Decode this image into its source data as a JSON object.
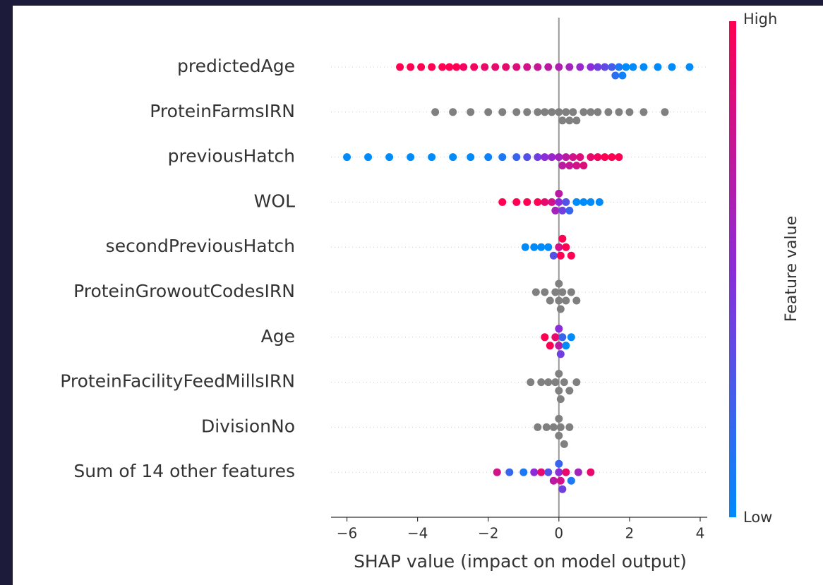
{
  "chart_data": {
    "type": "beeswarm",
    "xlabel": "SHAP value (impact on model output)",
    "xlim": [
      -6.45,
      4.2
    ],
    "xticks": [
      {
        "value": -6,
        "label": "−6"
      },
      {
        "value": -4,
        "label": "−4"
      },
      {
        "value": -2,
        "label": "−2"
      },
      0,
      2,
      4
    ],
    "grid": true,
    "colormap": [
      "#008bfb",
      "#8c2cd8",
      "#ff0052"
    ],
    "missing_color": "#808080",
    "colorbar": {
      "label": "Feature value",
      "high_label": "High",
      "low_label": "Low"
    },
    "series": [
      {
        "name": "predictedAge",
        "values": [
          -4.5,
          -4.2,
          -3.9,
          -3.6,
          -3.3,
          -3.1,
          -2.9,
          -2.7,
          -2.4,
          -2.1,
          -1.8,
          -1.5,
          -1.2,
          -0.9,
          -0.6,
          -0.3,
          0,
          0.3,
          0.6,
          0.9,
          1.1,
          1.3,
          1.5,
          1.6,
          1.7,
          1.8,
          1.9,
          2.1,
          2.4,
          2.8,
          3.2,
          3.7
        ],
        "feature_values": [
          1,
          1,
          1,
          1,
          1,
          1,
          1,
          0.95,
          0.95,
          0.9,
          0.9,
          0.9,
          0.85,
          0.8,
          0.75,
          0.7,
          0.65,
          0.6,
          0.55,
          0.5,
          0.4,
          0.35,
          0.25,
          0.15,
          0.1,
          0.05,
          0,
          0,
          0,
          0,
          0,
          0
        ]
      },
      {
        "name": "ProteinFarmsIRN",
        "values": [
          -3.5,
          -3,
          -2.5,
          -2,
          -1.6,
          -1.2,
          -0.9,
          -0.6,
          -0.4,
          -0.2,
          0,
          0.1,
          0.2,
          0.3,
          0.4,
          0.5,
          0.7,
          0.9,
          1.1,
          1.4,
          1.7,
          2,
          2.4,
          3
        ]
      },
      {
        "name": "previousHatch",
        "values": [
          -6,
          -5.4,
          -4.8,
          -4.2,
          -3.6,
          -3,
          -2.5,
          -2,
          -1.6,
          -1.2,
          -0.9,
          -0.6,
          -0.4,
          -0.2,
          0,
          0.1,
          0.2,
          0.3,
          0.4,
          0.5,
          0.6,
          0.7,
          0.9,
          1.1,
          1.3,
          1.5,
          1.7
        ],
        "feature_values": [
          0,
          0,
          0,
          0,
          0,
          0,
          0,
          0.05,
          0.1,
          0.2,
          0.3,
          0.4,
          0.5,
          0.55,
          0.6,
          0.7,
          0.7,
          0.75,
          0.8,
          0.8,
          0.85,
          0.85,
          0.9,
          0.95,
          1,
          1,
          1
        ]
      },
      {
        "name": "WOL",
        "values": [
          -1.6,
          -1.2,
          -0.9,
          -0.6,
          -0.4,
          -0.2,
          -0.1,
          0,
          0,
          0.1,
          0.2,
          0.3,
          0.5,
          0.7,
          0.9,
          1.15
        ],
        "feature_values": [
          1,
          1,
          1,
          1,
          0.9,
          0.8,
          0.6,
          0.5,
          0.7,
          0.4,
          0.3,
          0.2,
          0,
          0,
          0,
          0
        ]
      },
      {
        "name": "secondPreviousHatch",
        "values": [
          -0.95,
          -0.7,
          -0.5,
          -0.3,
          -0.15,
          0,
          0.05,
          0.1,
          0.2,
          0.35
        ],
        "feature_values": [
          0,
          0,
          0,
          0,
          0.3,
          0.8,
          1,
          1,
          1,
          1
        ]
      },
      {
        "name": "ProteinGrowoutCodesIRN",
        "values": [
          -0.65,
          -0.4,
          -0.25,
          -0.1,
          0,
          0,
          0.05,
          0.1,
          0.2,
          0.35,
          0.5
        ]
      },
      {
        "name": "Age",
        "values": [
          -0.4,
          -0.25,
          -0.1,
          0,
          0,
          0.05,
          0.1,
          0.2,
          0.35
        ],
        "feature_values": [
          1,
          1,
          0.9,
          0.7,
          0.5,
          0.4,
          0.2,
          0,
          0
        ]
      },
      {
        "name": "ProteinFacilityFeedMillsIRN",
        "values": [
          -0.8,
          -0.5,
          -0.3,
          -0.1,
          0,
          0,
          0.05,
          0.15,
          0.3,
          0.5
        ]
      },
      {
        "name": "DivisionNo",
        "values": [
          -0.6,
          -0.35,
          -0.15,
          0,
          0,
          0.05,
          0.15,
          0.3
        ]
      },
      {
        "name": "Sum of 14 other features",
        "values": [
          -1.75,
          -1.4,
          -1,
          -0.7,
          -0.5,
          -0.3,
          -0.15,
          0,
          0,
          0.05,
          0.1,
          0.2,
          0.35,
          0.55,
          0.9
        ],
        "feature_values": [
          0.8,
          0.2,
          0.1,
          0.5,
          0.9,
          0.3,
          0.7,
          0.5,
          0.2,
          0.8,
          0.4,
          0.9,
          0.1,
          0.6,
          0.9
        ]
      }
    ]
  }
}
